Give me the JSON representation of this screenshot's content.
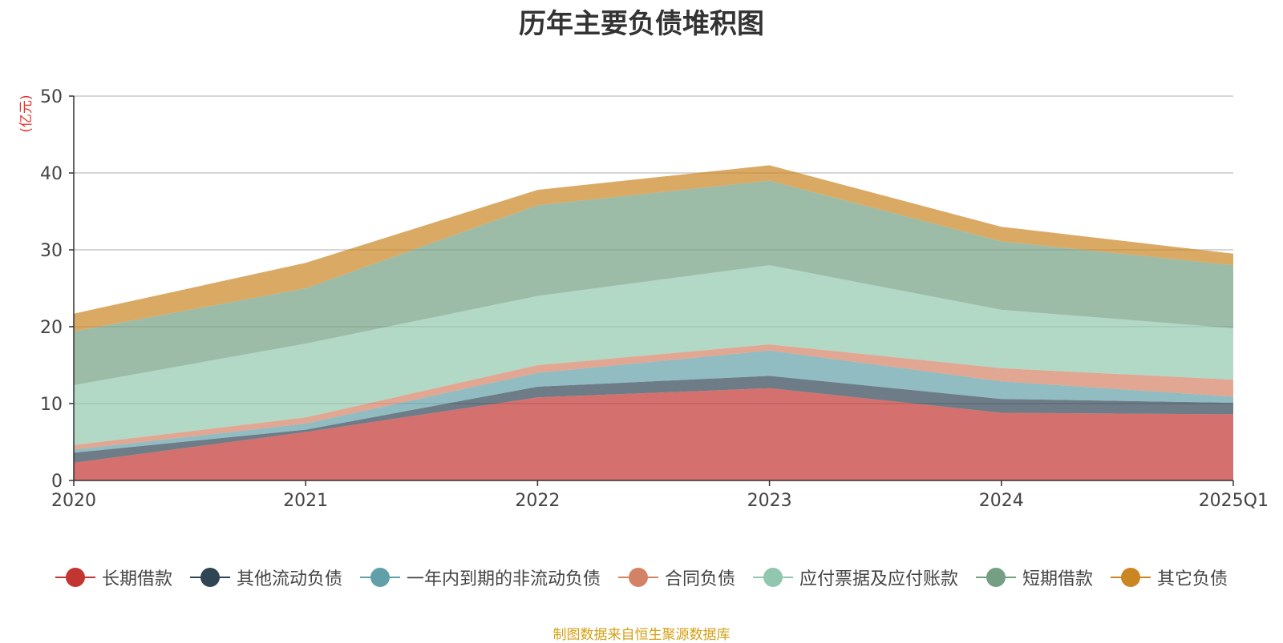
{
  "chart_data": {
    "type": "area",
    "stacked": true,
    "title": "历年主要负债堆积图",
    "ylabel": "(亿元)",
    "ylim": [
      0,
      50
    ],
    "yticks": [
      0,
      10,
      20,
      30,
      40,
      50
    ],
    "grid": true,
    "legend_position": "bottom",
    "categories": [
      "2020",
      "2021",
      "2022",
      "2023",
      "2024",
      "2025Q1"
    ],
    "series": [
      {
        "name": "长期借款",
        "color": "#c23531",
        "values": [
          2.3,
          6.3,
          10.8,
          12.0,
          8.8,
          8.6
        ]
      },
      {
        "name": "其他流动负债",
        "color": "#2f4554",
        "values": [
          1.3,
          0.3,
          1.4,
          1.6,
          1.8,
          1.5
        ]
      },
      {
        "name": "一年内到期的非流动负债",
        "color": "#61a0a8",
        "values": [
          0.4,
          0.8,
          1.8,
          3.3,
          2.3,
          0.8
        ]
      },
      {
        "name": "合同负债",
        "color": "#d48265",
        "values": [
          0.6,
          0.8,
          1.0,
          0.8,
          1.7,
          2.2
        ]
      },
      {
        "name": "应付票据及应付账款",
        "color": "#91c7ae",
        "values": [
          7.8,
          9.6,
          9.0,
          10.3,
          7.6,
          6.7
        ]
      },
      {
        "name": "短期借款",
        "color": "#749f83",
        "values": [
          7.0,
          7.2,
          11.8,
          11.0,
          8.9,
          8.2
        ]
      },
      {
        "name": "其它负债",
        "color": "#ca8622",
        "values": [
          2.3,
          3.3,
          2.0,
          2.0,
          1.9,
          1.5
        ]
      }
    ]
  },
  "footer": {
    "source": "制图数据来自恒生聚源数据库"
  }
}
